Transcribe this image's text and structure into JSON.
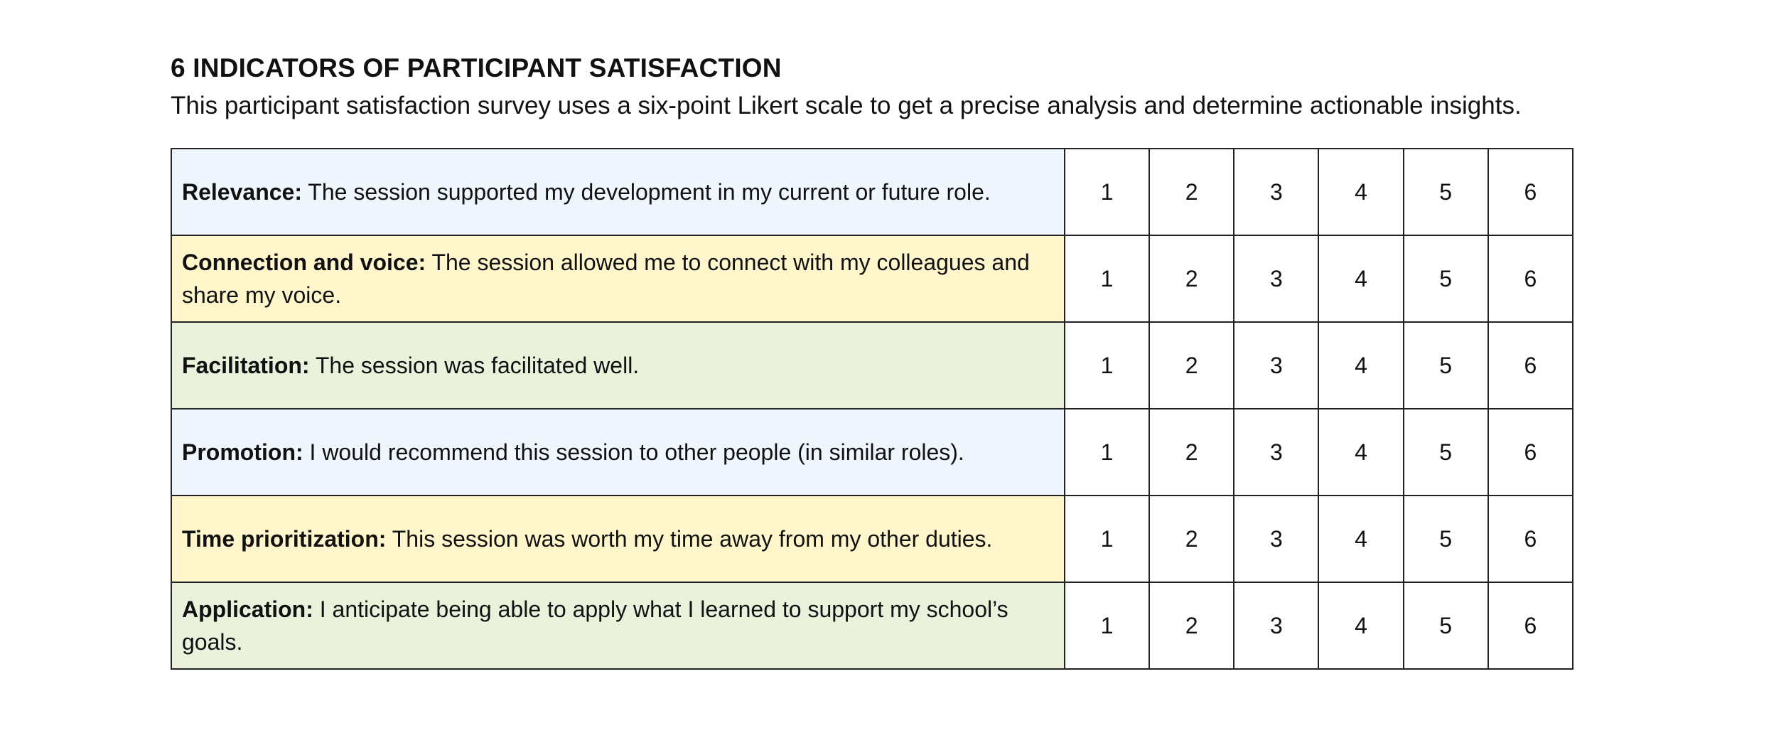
{
  "title": "6 INDICATORS OF PARTICIPANT SATISFACTION",
  "subtitle": "This participant satisfaction survey uses a six-point Likert scale to get a precise analysis and determine actionable insights.",
  "colors": {
    "blue_row": "#eff6fe",
    "yellow_row": "#fff6cc",
    "green_row": "#eaf2dc",
    "border": "#222222"
  },
  "scale": [
    "1",
    "2",
    "3",
    "4",
    "5",
    "6"
  ],
  "rows": [
    {
      "label": "Relevance:",
      "text": " The session supported my development in my current or future role.",
      "color": "blue"
    },
    {
      "label": "Connection and voice:",
      "text": " The session allowed me to connect with my colleagues and share my voice.",
      "color": "yellow"
    },
    {
      "label": "Facilitation:",
      "text": " The session was facilitated well.",
      "color": "green"
    },
    {
      "label": "Promotion:",
      "text": " I would recommend this session to other people (in similar roles).",
      "color": "blue"
    },
    {
      "label": "Time prioritization:",
      "text": " This session was worth my time away from my other duties.",
      "color": "yellow"
    },
    {
      "label": "Application:",
      "text": " I anticipate being able to apply what I learned to support my school’s goals.",
      "color": "green"
    }
  ]
}
